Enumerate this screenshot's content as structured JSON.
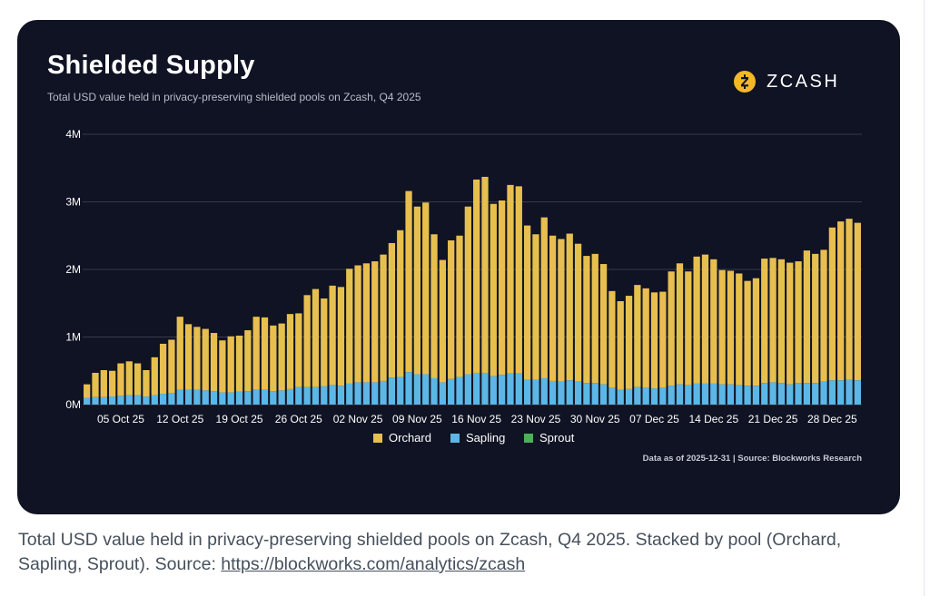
{
  "card": {
    "title": "Shielded Supply",
    "subtitle": "Total USD value held in privacy-preserving shielded pools on Zcash, Q4 2025",
    "brand": "ZCASH",
    "brand_icon": "zcash-logo-icon",
    "footnote": "Data as of 2025-12-31 | Source: Blockworks Research"
  },
  "caption": {
    "text": "Total USD value held in privacy-preserving shielded pools on Zcash, Q4 2025. Stacked by pool (Orchard, Sapling, Sprout). Source: ",
    "link": "https://blockworks.com/analytics/zcash"
  },
  "colors": {
    "background": "#0f1323",
    "orchard": "#e7bf4f",
    "sapling": "#5cb7e6",
    "sprout": "#4fae5b",
    "brand_accent": "#f4b728"
  },
  "chart_data": {
    "type": "bar",
    "stacked": true,
    "x_tick_labels": [
      "05 Oct 25",
      "12 Oct 25",
      "19 Oct 25",
      "26 Oct 25",
      "02 Nov 25",
      "09 Nov 25",
      "16 Nov 25",
      "23 Nov 25",
      "30 Nov 25",
      "07 Dec 25",
      "14 Dec 25",
      "21 Dec 25",
      "28 Dec 25"
    ],
    "x_tick_index": [
      4,
      11,
      18,
      25,
      32,
      39,
      46,
      53,
      60,
      67,
      74,
      81,
      88
    ],
    "y_ticks": [
      0,
      1000000,
      2000000,
      3000000,
      4000000
    ],
    "y_tick_labels": [
      "0M",
      "1M",
      "2M",
      "3M",
      "4M"
    ],
    "ylim": [
      0,
      4000000
    ],
    "grid": "horizontal",
    "legend_position": "bottom",
    "legend": [
      "Orchard",
      "Sapling",
      "Sprout"
    ],
    "totals": [
      300000,
      470000,
      510000,
      500000,
      610000,
      640000,
      610000,
      510000,
      700000,
      900000,
      960000,
      1300000,
      1190000,
      1150000,
      1120000,
      1060000,
      950000,
      1010000,
      1020000,
      1100000,
      1300000,
      1290000,
      1170000,
      1200000,
      1340000,
      1350000,
      1620000,
      1710000,
      1570000,
      1760000,
      1740000,
      2010000,
      2060000,
      2090000,
      2120000,
      2220000,
      2390000,
      2580000,
      3160000,
      2930000,
      2990000,
      2520000,
      2140000,
      2430000,
      2500000,
      2930000,
      3330000,
      3370000,
      2970000,
      3020000,
      3250000,
      3230000,
      2650000,
      2520000,
      2770000,
      2500000,
      2450000,
      2530000,
      2380000,
      2200000,
      2230000,
      2080000,
      1680000,
      1530000,
      1610000,
      1770000,
      1720000,
      1660000,
      1670000,
      1970000,
      2090000,
      1970000,
      2190000,
      2220000,
      2150000,
      1990000,
      1980000,
      1940000,
      1830000,
      1870000,
      2160000,
      2170000,
      2150000,
      2100000,
      2120000,
      2280000,
      2230000,
      2290000,
      2620000,
      2710000,
      2750000,
      2690000
    ],
    "series": [
      {
        "name": "Orchard",
        "values": [
          200000,
          360000,
          400000,
          380000,
          480000,
          500000,
          470000,
          390000,
          560000,
          740000,
          790000,
          1080000,
          970000,
          930000,
          910000,
          860000,
          770000,
          830000,
          830000,
          900000,
          1080000,
          1070000,
          970000,
          990000,
          1110000,
          1090000,
          1360000,
          1450000,
          1300000,
          1470000,
          1460000,
          1700000,
          1730000,
          1760000,
          1790000,
          1870000,
          1990000,
          2170000,
          2680000,
          2480000,
          2540000,
          2130000,
          1810000,
          2050000,
          2090000,
          2480000,
          2860000,
          2900000,
          2550000,
          2580000,
          2790000,
          2770000,
          2280000,
          2150000,
          2380000,
          2150000,
          2110000,
          2170000,
          2040000,
          1880000,
          1910000,
          1780000,
          1430000,
          1310000,
          1380000,
          1510000,
          1470000,
          1420000,
          1420000,
          1690000,
          1790000,
          1680000,
          1880000,
          1910000,
          1840000,
          1690000,
          1680000,
          1650000,
          1550000,
          1590000,
          1840000,
          1840000,
          1830000,
          1800000,
          1800000,
          1960000,
          1910000,
          1950000,
          2260000,
          2350000,
          2380000,
          2330000
        ]
      },
      {
        "name": "Sapling",
        "values": [
          100000,
          110000,
          110000,
          120000,
          130000,
          140000,
          140000,
          120000,
          140000,
          160000,
          170000,
          220000,
          220000,
          220000,
          210000,
          200000,
          180000,
          180000,
          190000,
          200000,
          220000,
          220000,
          200000,
          210000,
          230000,
          260000,
          260000,
          260000,
          270000,
          290000,
          280000,
          310000,
          330000,
          330000,
          330000,
          350000,
          400000,
          410000,
          480000,
          450000,
          450000,
          390000,
          330000,
          380000,
          410000,
          450000,
          470000,
          470000,
          420000,
          440000,
          460000,
          460000,
          370000,
          370000,
          390000,
          350000,
          340000,
          360000,
          340000,
          320000,
          320000,
          300000,
          250000,
          220000,
          230000,
          260000,
          250000,
          240000,
          250000,
          280000,
          300000,
          290000,
          310000,
          310000,
          310000,
          300000,
          300000,
          290000,
          280000,
          280000,
          320000,
          330000,
          320000,
          300000,
          320000,
          320000,
          320000,
          340000,
          360000,
          360000,
          370000,
          360000
        ]
      },
      {
        "name": "Sprout",
        "values": [
          0,
          0,
          0,
          0,
          0,
          0,
          0,
          0,
          0,
          0,
          0,
          0,
          0,
          0,
          0,
          0,
          0,
          0,
          0,
          0,
          0,
          0,
          0,
          0,
          0,
          0,
          0,
          0,
          0,
          0,
          0,
          0,
          0,
          0,
          0,
          0,
          0,
          0,
          0,
          0,
          0,
          0,
          0,
          0,
          0,
          0,
          0,
          0,
          0,
          0,
          0,
          0,
          0,
          0,
          0,
          0,
          0,
          0,
          0,
          0,
          0,
          0,
          0,
          0,
          0,
          0,
          0,
          0,
          0,
          0,
          0,
          0,
          0,
          0,
          0,
          0,
          0,
          0,
          0,
          0,
          0,
          0,
          0,
          0,
          0,
          0,
          0,
          0,
          0,
          0,
          0,
          0
        ]
      }
    ]
  }
}
